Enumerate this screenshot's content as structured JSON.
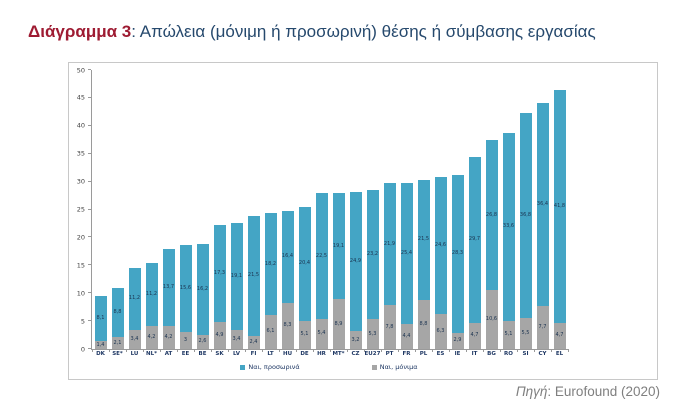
{
  "title": {
    "prefix": "Διάγραμμα 3",
    "rest": ": Απώλεια (μόνιμη ή προσωρινή) θέσης ή σύμβασης εργασίας"
  },
  "source": {
    "prefix_italic": "Πηγή",
    "rest": ": Eurofound (2020)"
  },
  "colors": {
    "temporary_blue": "#44A5C5",
    "permanent_gray": "#A6A6A6",
    "title_accent": "#9E1B32",
    "title_text": "#26496D",
    "axis": "#9a9a9a"
  },
  "chart_data": {
    "type": "bar",
    "stacked": true,
    "title": "Απώλεια (μόνιμη ή προσωρινή) θέσης ή σύμβασης εργασίας",
    "xlabel": "",
    "ylabel": "",
    "ylim": [
      0,
      50
    ],
    "ytick_step": 5,
    "grid": false,
    "legend_position": "bottom",
    "decimal_separator": ",",
    "categories": [
      "DK",
      "SE*",
      "LU",
      "NL*",
      "AT",
      "EE",
      "BE",
      "SK",
      "LV",
      "FI",
      "LT",
      "HU",
      "DE",
      "HR",
      "MT*",
      "CZ",
      "EU27",
      "PT",
      "FR",
      "PL",
      "ES",
      "IE",
      "IT",
      "BG",
      "RO",
      "SI",
      "CY",
      "EL"
    ],
    "series": [
      {
        "name": "Ναι, προσωρινά",
        "color": "#44A5C5",
        "stack_position": "top",
        "values": [
          8.1,
          8.8,
          11.2,
          11.2,
          13.7,
          15.6,
          16.2,
          17.3,
          19.1,
          21.5,
          18.2,
          16.4,
          20.4,
          22.5,
          19.1,
          24.9,
          23.2,
          21.9,
          25.4,
          21.5,
          24.6,
          28.3,
          29.7,
          26.8,
          33.6,
          36.8,
          36.4,
          41.8
        ]
      },
      {
        "name": "Ναι, μόνιμα",
        "color": "#A6A6A6",
        "stack_position": "bottom",
        "values": [
          1.4,
          2.1,
          3.4,
          4.2,
          4.2,
          3,
          2.6,
          4.9,
          3.4,
          2.4,
          6.1,
          8.3,
          5.1,
          5.4,
          8.9,
          3.2,
          5.3,
          7.8,
          4.4,
          8.8,
          6.3,
          2.9,
          4.7,
          10.6,
          5.1,
          5.5,
          7.7,
          4.7
        ]
      }
    ]
  }
}
